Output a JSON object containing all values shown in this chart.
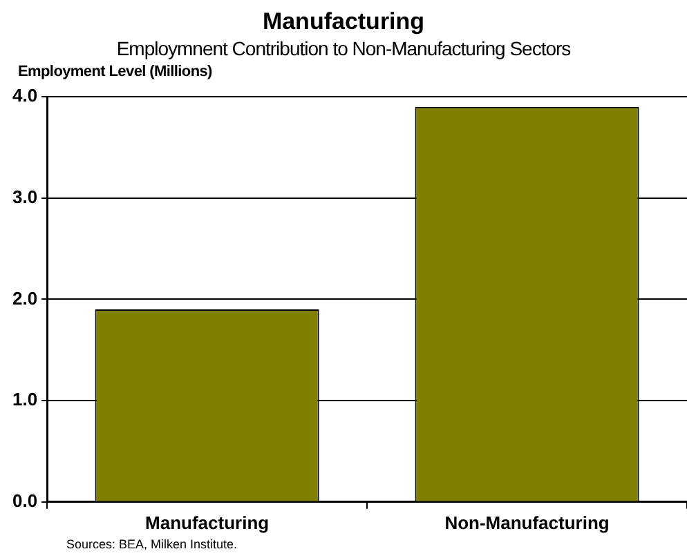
{
  "chart_data": {
    "type": "bar",
    "title": "Manufacturing",
    "subtitle": "Employmnent Contribution to Non-Manufacturing Sectors",
    "ylabel": "Employment Level (Millions)",
    "categories": [
      "Manufacturing",
      "Non-Manufacturing"
    ],
    "values": [
      1.9,
      3.9
    ],
    "color": "#808000",
    "ylim": [
      0,
      4
    ],
    "yticks": [
      {
        "value": 0,
        "label": "0.0"
      },
      {
        "value": 1,
        "label": "1.0"
      },
      {
        "value": 2,
        "label": "2.0"
      },
      {
        "value": 3,
        "label": "3.0"
      },
      {
        "value": 4,
        "label": "4.0"
      }
    ],
    "grid": "y",
    "annotations": [
      "Sources: BEA, Milken Institute."
    ]
  }
}
